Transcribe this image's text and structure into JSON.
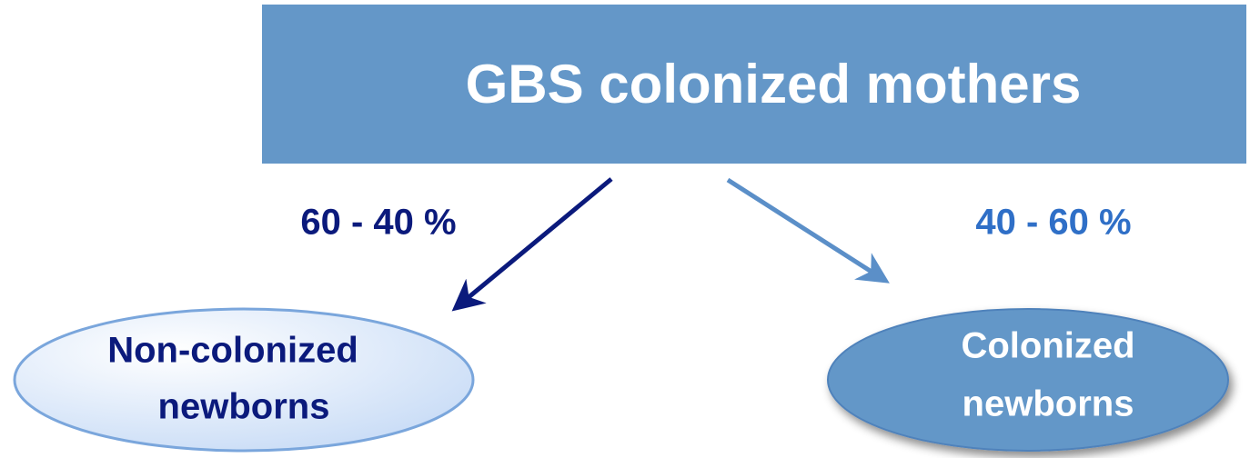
{
  "header": {
    "title": "GBS colonized mothers"
  },
  "edges": [
    {
      "label": "60 - 40 %"
    },
    {
      "label": "40 - 60 %"
    }
  ],
  "nodes": [
    {
      "lines": [
        "Non-colonized",
        "newborns"
      ]
    },
    {
      "lines": [
        "Colonized",
        "newborns"
      ]
    }
  ]
}
